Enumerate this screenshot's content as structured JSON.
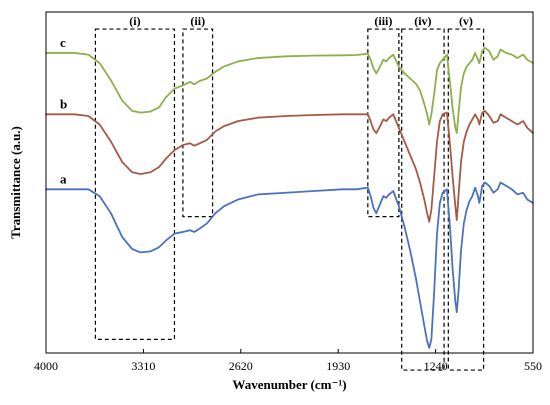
{
  "chart_data": {
    "type": "line",
    "title": "",
    "xlabel": "Wavenumber (cm⁻¹)",
    "ylabel": "Transmittance (a.u.)",
    "xlim": [
      4000,
      550
    ],
    "x_reversed": true,
    "ylim": [
      0,
      100
    ],
    "grid": false,
    "xticks": [
      "4000",
      "3310",
      "2620",
      "1930",
      "1240",
      "550"
    ],
    "regions": [
      {
        "label": "(i)",
        "x_from": 3650,
        "x_to": 3090,
        "y_from": 95,
        "y_to": 4
      },
      {
        "label": "(ii)",
        "x_from": 3030,
        "x_to": 2820,
        "y_from": 95,
        "y_to": 40
      },
      {
        "label": "(iii)",
        "x_from": 1720,
        "x_to": 1500,
        "y_from": 95,
        "y_to": 40
      },
      {
        "label": "(iv)",
        "x_from": 1480,
        "x_to": 1180,
        "y_from": 95,
        "y_to": -5
      },
      {
        "label": "(v)",
        "x_from": 1150,
        "x_to": 900,
        "y_from": 95,
        "y_to": -5
      }
    ],
    "series": [
      {
        "name": "c",
        "color": "#8db04a",
        "points": [
          [
            4000,
            88
          ],
          [
            3800,
            88
          ],
          [
            3700,
            87.5
          ],
          [
            3620,
            85
          ],
          [
            3540,
            80
          ],
          [
            3460,
            74
          ],
          [
            3390,
            71
          ],
          [
            3330,
            70.5
          ],
          [
            3260,
            70.8
          ],
          [
            3200,
            72
          ],
          [
            3150,
            75
          ],
          [
            3090,
            77.5
          ],
          [
            3030,
            78.5
          ],
          [
            2980,
            79.5
          ],
          [
            2950,
            78.8
          ],
          [
            2910,
            79.8
          ],
          [
            2860,
            80.5
          ],
          [
            2800,
            82.5
          ],
          [
            2740,
            84
          ],
          [
            2640,
            85.5
          ],
          [
            2500,
            86.5
          ],
          [
            2300,
            87
          ],
          [
            2100,
            87.2
          ],
          [
            1900,
            87.3
          ],
          [
            1800,
            87.4
          ],
          [
            1720,
            87.8
          ],
          [
            1700,
            86
          ],
          [
            1680,
            83.5
          ],
          [
            1660,
            82
          ],
          [
            1640,
            83.5
          ],
          [
            1610,
            86
          ],
          [
            1590,
            85.5
          ],
          [
            1570,
            86.5
          ],
          [
            1540,
            87.5
          ],
          [
            1500,
            84
          ],
          [
            1460,
            82
          ],
          [
            1420,
            80.5
          ],
          [
            1380,
            79
          ],
          [
            1350,
            77
          ],
          [
            1320,
            73
          ],
          [
            1300,
            70
          ],
          [
            1285,
            67
          ],
          [
            1270,
            70
          ],
          [
            1250,
            76
          ],
          [
            1230,
            83
          ],
          [
            1210,
            85
          ],
          [
            1190,
            86
          ],
          [
            1160,
            87.5
          ],
          [
            1140,
            80
          ],
          [
            1120,
            72
          ],
          [
            1100,
            66
          ],
          [
            1090,
            64.5
          ],
          [
            1078,
            70
          ],
          [
            1060,
            78
          ],
          [
            1040,
            82
          ],
          [
            1020,
            84
          ],
          [
            1000,
            85
          ],
          [
            980,
            86
          ],
          [
            960,
            88
          ],
          [
            940,
            86
          ],
          [
            930,
            85
          ],
          [
            910,
            88.5
          ],
          [
            890,
            89.5
          ],
          [
            860,
            88.5
          ],
          [
            830,
            86
          ],
          [
            800,
            87
          ],
          [
            780,
            89
          ],
          [
            740,
            88
          ],
          [
            700,
            87.5
          ],
          [
            660,
            86.5
          ],
          [
            620,
            87.5
          ],
          [
            590,
            86
          ],
          [
            550,
            85
          ]
        ]
      },
      {
        "name": "b",
        "color": "#a65a44",
        "points": [
          [
            4000,
            70
          ],
          [
            3800,
            70
          ],
          [
            3700,
            69.5
          ],
          [
            3620,
            67
          ],
          [
            3540,
            62
          ],
          [
            3460,
            56
          ],
          [
            3390,
            53
          ],
          [
            3330,
            52.5
          ],
          [
            3260,
            53
          ],
          [
            3200,
            54.5
          ],
          [
            3150,
            57
          ],
          [
            3090,
            59.5
          ],
          [
            3030,
            61
          ],
          [
            2980,
            61.5
          ],
          [
            2950,
            60.8
          ],
          [
            2910,
            61.5
          ],
          [
            2860,
            62.5
          ],
          [
            2800,
            65
          ],
          [
            2740,
            66.5
          ],
          [
            2640,
            68
          ],
          [
            2500,
            69
          ],
          [
            2300,
            69.5
          ],
          [
            2100,
            69.8
          ],
          [
            1900,
            70
          ],
          [
            1800,
            70
          ],
          [
            1720,
            70
          ],
          [
            1700,
            68
          ],
          [
            1680,
            65.5
          ],
          [
            1660,
            64.5
          ],
          [
            1640,
            66
          ],
          [
            1610,
            68.5
          ],
          [
            1590,
            68
          ],
          [
            1570,
            69
          ],
          [
            1540,
            70
          ],
          [
            1500,
            66
          ],
          [
            1460,
            62
          ],
          [
            1420,
            58
          ],
          [
            1380,
            54
          ],
          [
            1350,
            50
          ],
          [
            1320,
            45
          ],
          [
            1300,
            41
          ],
          [
            1285,
            38.5
          ],
          [
            1270,
            42
          ],
          [
            1250,
            52
          ],
          [
            1230,
            62
          ],
          [
            1210,
            68
          ],
          [
            1190,
            70
          ],
          [
            1160,
            70.5
          ],
          [
            1140,
            62
          ],
          [
            1120,
            52
          ],
          [
            1100,
            43
          ],
          [
            1090,
            39
          ],
          [
            1078,
            46
          ],
          [
            1060,
            56
          ],
          [
            1040,
            62
          ],
          [
            1020,
            65
          ],
          [
            1000,
            67
          ],
          [
            980,
            68.5
          ],
          [
            960,
            70
          ],
          [
            940,
            68.5
          ],
          [
            930,
            67
          ],
          [
            910,
            70.5
          ],
          [
            890,
            71
          ],
          [
            860,
            69.5
          ],
          [
            830,
            67.5
          ],
          [
            800,
            68
          ],
          [
            780,
            70
          ],
          [
            740,
            69
          ],
          [
            700,
            68
          ],
          [
            660,
            67
          ],
          [
            620,
            68
          ],
          [
            590,
            66
          ],
          [
            550,
            64.5
          ]
        ]
      },
      {
        "name": "a",
        "color": "#4a72be",
        "points": [
          [
            4000,
            48
          ],
          [
            3800,
            48
          ],
          [
            3700,
            48
          ],
          [
            3620,
            46
          ],
          [
            3540,
            41
          ],
          [
            3460,
            34
          ],
          [
            3390,
            30.5
          ],
          [
            3330,
            29.5
          ],
          [
            3260,
            29.8
          ],
          [
            3200,
            31
          ],
          [
            3150,
            33
          ],
          [
            3090,
            35
          ],
          [
            3030,
            35.5
          ],
          [
            2980,
            36
          ],
          [
            2950,
            35.5
          ],
          [
            2910,
            36.5
          ],
          [
            2860,
            38
          ],
          [
            2800,
            41
          ],
          [
            2740,
            43
          ],
          [
            2640,
            45
          ],
          [
            2500,
            46.5
          ],
          [
            2300,
            47
          ],
          [
            2100,
            47.5
          ],
          [
            1900,
            48
          ],
          [
            1800,
            48
          ],
          [
            1720,
            48.5
          ],
          [
            1700,
            46
          ],
          [
            1680,
            42.5
          ],
          [
            1660,
            41
          ],
          [
            1640,
            43
          ],
          [
            1610,
            46
          ],
          [
            1590,
            45.5
          ],
          [
            1570,
            46.5
          ],
          [
            1540,
            47.5
          ],
          [
            1500,
            43
          ],
          [
            1460,
            37
          ],
          [
            1420,
            30
          ],
          [
            1380,
            22
          ],
          [
            1350,
            15
          ],
          [
            1320,
            8
          ],
          [
            1300,
            3.5
          ],
          [
            1285,
            1.5
          ],
          [
            1270,
            4
          ],
          [
            1250,
            18
          ],
          [
            1230,
            35
          ],
          [
            1210,
            44
          ],
          [
            1190,
            47
          ],
          [
            1160,
            48
          ],
          [
            1140,
            38
          ],
          [
            1120,
            25
          ],
          [
            1100,
            15
          ],
          [
            1090,
            12
          ],
          [
            1078,
            18
          ],
          [
            1060,
            30
          ],
          [
            1040,
            38
          ],
          [
            1020,
            42
          ],
          [
            1000,
            44.5
          ],
          [
            980,
            46
          ],
          [
            960,
            48.5
          ],
          [
            940,
            46
          ],
          [
            930,
            44
          ],
          [
            910,
            49
          ],
          [
            890,
            50
          ],
          [
            860,
            49
          ],
          [
            830,
            47
          ],
          [
            800,
            48
          ],
          [
            780,
            50
          ],
          [
            740,
            49
          ],
          [
            700,
            48
          ],
          [
            660,
            46.5
          ],
          [
            620,
            47
          ],
          [
            590,
            45
          ],
          [
            550,
            44
          ]
        ]
      }
    ]
  }
}
